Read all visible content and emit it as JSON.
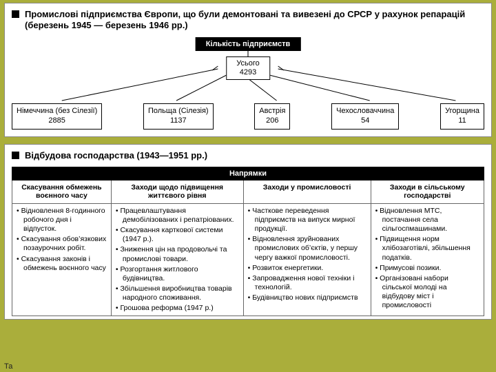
{
  "panel1": {
    "title": "Промислові підприємства Європи, що були демонтовані та вивезені до СРСР у рахунок репарацій (березень 1945 — березень 1946 рр.)",
    "header_label": "Кількість підприємств",
    "total_label": "Усього",
    "total_value": "4293",
    "boxes": [
      {
        "name": "Німеччина (без Сілезії)",
        "value": "2885"
      },
      {
        "name": "Польща (Сілезія)",
        "value": "1137"
      },
      {
        "name": "Австрія",
        "value": "206"
      },
      {
        "name": "Чехословаччина",
        "value": "54"
      },
      {
        "name": "Угорщина",
        "value": "11"
      }
    ],
    "colors": {
      "header_bg": "#000000",
      "header_fg": "#ffffff",
      "box_border": "#000000"
    }
  },
  "panel2": {
    "title": "Відбудова господарства (1943—1951 рр.)",
    "header_label": "Напрямки",
    "columns": [
      "Скасування обмежень воєнного часу",
      "Заходи щодо підвищення життєвого рівня",
      "Заходи у промисловості",
      "Заходи в сільському господарстві"
    ],
    "cells": [
      [
        "Відновлення 8-годинного робочого дня і відпусток.",
        "Скасування обов’язкових позаурочних робіт.",
        "Скасування законів і обмежень воєнного часу"
      ],
      [
        "Працевлаштування демобілізованих і репатріованих.",
        "Скасування карткової системи (1947 р.).",
        "Зниження цін на продовольчі та промислові товари.",
        "Розгортання житлового будівництва.",
        "Збільшення виробництва товарів народного споживання.",
        "Грошова реформа (1947 р.)"
      ],
      [
        "Часткове переведення підприємств на випуск мирної продукції.",
        "Відновлення зруйнованих промислових об’єктів, у першу чергу важкої промисловості.",
        "Розвиток енергетики.",
        "Запровадження нової техніки і технологій.",
        "Будівництво нових підприємств"
      ],
      [
        "Відновлення МТС, постачання села сільгоспмашинами.",
        "Підвищення норм хлібозаготівлі, збільшення податків.",
        "Примусові позики.",
        "Організовані набори сільської молоді на відбудову міст і промисловості"
      ]
    ],
    "col_widths": [
      "21%",
      "28%",
      "27%",
      "24%"
    ]
  },
  "footer": "Та",
  "colors": {
    "page_bg": "#aaae3b",
    "panel_bg": "#ffffff"
  }
}
